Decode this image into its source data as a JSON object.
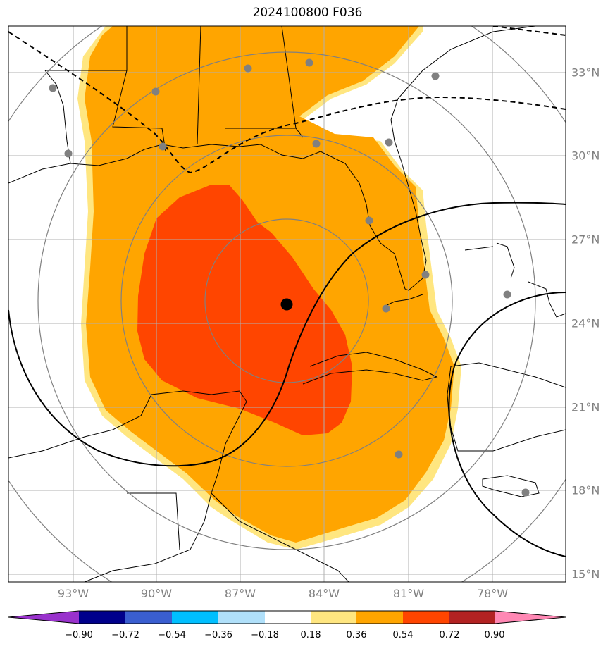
{
  "title": "2024100800 F036",
  "lon_labels": [
    "93°W",
    "90°W",
    "87°W",
    "84°W",
    "81°W",
    "78°W"
  ],
  "lat_labels": [
    "33°N",
    "30°N",
    "27°N",
    "24°N",
    "21°N",
    "18°N",
    "15°N"
  ],
  "colorbar": {
    "tick_labels": [
      "−0.90",
      "−0.72",
      "−0.54",
      "−0.36",
      "−0.18",
      "0.18",
      "0.36",
      "0.54",
      "0.72",
      "0.90"
    ],
    "colors": [
      "#9932cc",
      "#00008b",
      "#3a5ed0",
      "#00bfff",
      "#b0e0fa",
      "#ffffff",
      "#ffe680",
      "#ffa500",
      "#ff4500",
      "#b22222",
      "#ff88b4"
    ]
  },
  "colors": {
    "contour_light": "#ffe680",
    "contour_mid": "#ffa500",
    "contour_high": "#ff4500",
    "station_dot": "#808080",
    "grid": "#b0b0b0",
    "range_ring": "#808080"
  }
}
